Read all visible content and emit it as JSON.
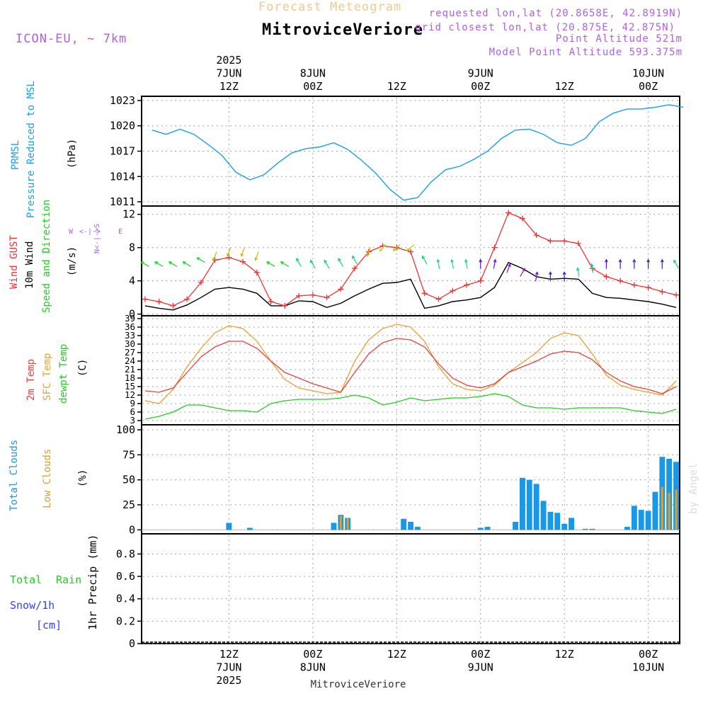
{
  "header": {
    "title": "Forecast Meteogram",
    "location": "MitroviceVeriore",
    "model": "ICON-EU, ~ 7km",
    "requested": "requested lon,lat (20.8658E, 42.8919N)",
    "closest": "grid closest lon,lat (20.875E, 42.875N)",
    "point_altitude": "Point Altitude 521m",
    "model_altitude": "Model Point Altitude 593.375m",
    "watermark": "by Angel",
    "footer_location": "MitroviceVeriore"
  },
  "time_axis": {
    "top_labels": [
      {
        "hour": 12,
        "lines": [
          "2025",
          "7JUN",
          "12Z"
        ]
      },
      {
        "hour": 24,
        "lines": [
          "8JUN",
          "00Z"
        ]
      },
      {
        "hour": 36,
        "lines": [
          "12Z"
        ]
      },
      {
        "hour": 48,
        "lines": [
          "9JUN",
          "00Z"
        ]
      },
      {
        "hour": 60,
        "lines": [
          "12Z"
        ]
      },
      {
        "hour": 72,
        "lines": [
          "10JUN",
          "00Z"
        ]
      }
    ],
    "bottom_labels": [
      {
        "hour": 12,
        "lines": [
          "12Z",
          "7JUN",
          "2025"
        ]
      },
      {
        "hour": 24,
        "lines": [
          "00Z",
          "8JUN"
        ]
      },
      {
        "hour": 36,
        "lines": [
          "12Z"
        ]
      },
      {
        "hour": 48,
        "lines": [
          "00Z",
          "9JUN"
        ]
      },
      {
        "hour": 60,
        "lines": [
          "12Z"
        ]
      },
      {
        "hour": 72,
        "lines": [
          "00Z",
          "10JUN"
        ]
      }
    ]
  },
  "panels": {
    "pressure": {
      "label_a": "PRMSL",
      "label_b": "Pressure Reduced to MSL",
      "unit": "(hPa)"
    },
    "wind": {
      "gust": "Wind GUST",
      "wind": "10m Wind",
      "dir": "Speed and Direction",
      "unit": "(m/s)",
      "compass_ns": "N<-|->S",
      "compass_w": "W",
      "compass_we": "<-|->",
      "compass_e": "E"
    },
    "temp": {
      "t2m": "2m Temp",
      "sfc": "SFC Temp",
      "dew": "dewpt Temp",
      "unit": "(C)"
    },
    "clouds": {
      "total": "Total Clouds",
      "low": "Low Clouds",
      "unit": "(%)"
    },
    "precip": {
      "rain_a": "Total",
      "rain_b": "Rain",
      "snow": "Snow/1h",
      "snow_unit": "[cm]",
      "ylabel": "1hr Precip (mm)"
    }
  },
  "colors": {
    "pressure": "#1aa0e8",
    "gust": "#ee3333",
    "wind": "#000000",
    "t2m": "#e84040",
    "sfc": "#e8a030",
    "dew": "#22cc22",
    "total_cloud": "#1a98e8",
    "low_cloud": "#d8a038",
    "header_title": "#f0c890",
    "header_info": "#b060e0",
    "rain_label": "#22cc22",
    "snow_label": "#3344ee"
  },
  "chart_data": [
    {
      "type": "line",
      "name": "pressure",
      "ylabel": "(hPa)",
      "ylim": [
        1010.5,
        1023.5
      ],
      "yticks": [
        1011,
        1014,
        1017,
        1020,
        1023
      ],
      "x": [
        1,
        3,
        5,
        7,
        9,
        11,
        13,
        15,
        17,
        19,
        21,
        23,
        25,
        27,
        29,
        31,
        33,
        35,
        37,
        39,
        41,
        43,
        45,
        47,
        49,
        51,
        53,
        55,
        57,
        59,
        61,
        63,
        65,
        67,
        69,
        71,
        73,
        75,
        77
      ],
      "values": [
        1019.5,
        1019.0,
        1019.6,
        1019.0,
        1017.8,
        1016.5,
        1014.5,
        1013.6,
        1014.2,
        1015.6,
        1016.8,
        1017.3,
        1017.5,
        1018.0,
        1017.2,
        1015.9,
        1014.4,
        1012.5,
        1011.2,
        1011.5,
        1013.4,
        1014.8,
        1015.2,
        1016.0,
        1017.0,
        1018.5,
        1019.5,
        1019.6,
        1019.0,
        1018.0,
        1017.7,
        1018.5,
        1020.5,
        1021.5,
        1022.0,
        1022.0,
        1022.2,
        1022.5,
        1022.2
      ],
      "grid": true
    },
    {
      "type": "line",
      "name": "wind",
      "ylabel": "(m/s)",
      "ylim": [
        -0.2,
        13
      ],
      "yticks": [
        0,
        4,
        8,
        12
      ],
      "x": [
        0,
        2,
        4,
        6,
        8,
        10,
        12,
        14,
        16,
        18,
        20,
        22,
        24,
        26,
        28,
        30,
        32,
        34,
        36,
        38,
        40,
        42,
        44,
        46,
        48,
        50,
        52,
        54,
        56,
        58,
        60,
        62,
        64,
        66,
        68,
        70,
        72,
        74,
        76
      ],
      "series": [
        {
          "name": "Wind GUST",
          "values": [
            1.8,
            1.5,
            1.0,
            1.8,
            3.8,
            6.5,
            6.8,
            6.3,
            5.0,
            1.5,
            1.0,
            2.2,
            2.3,
            2.0,
            3.0,
            5.5,
            7.5,
            8.2,
            8.0,
            7.5,
            2.5,
            1.8,
            2.8,
            3.5,
            4.0,
            8.0,
            12.2,
            11.5,
            9.5,
            8.8,
            8.8,
            8.5,
            5.5,
            4.5,
            4.0,
            3.5,
            3.2,
            2.7,
            2.3
          ]
        },
        {
          "name": "10m Wind",
          "values": [
            1.0,
            0.7,
            0.5,
            1.1,
            2.0,
            3.0,
            3.2,
            3.0,
            2.5,
            1.0,
            1.0,
            1.6,
            1.5,
            0.8,
            1.3,
            2.2,
            3.0,
            3.7,
            3.8,
            4.2,
            0.7,
            1.0,
            1.5,
            1.7,
            2.0,
            3.2,
            6.2,
            5.5,
            4.5,
            4.2,
            4.3,
            4.2,
            2.5,
            2.0,
            1.9,
            1.7,
            1.5,
            1.2,
            0.8
          ]
        }
      ],
      "barbs": [
        {
          "x": 0,
          "s": 6.0,
          "dir": 300
        },
        {
          "x": 2,
          "s": 6.0,
          "dir": 300
        },
        {
          "x": 4,
          "s": 6.0,
          "dir": 300
        },
        {
          "x": 6,
          "s": 6.0,
          "dir": 300
        },
        {
          "x": 8,
          "s": 6.5,
          "dir": 300
        },
        {
          "x": 10,
          "s": 7.0,
          "dir": 200
        },
        {
          "x": 12,
          "s": 7.5,
          "dir": 200
        },
        {
          "x": 14,
          "s": 7.5,
          "dir": 200
        },
        {
          "x": 16,
          "s": 7.0,
          "dir": 200
        },
        {
          "x": 18,
          "s": 6.0,
          "dir": 300
        },
        {
          "x": 20,
          "s": 6.0,
          "dir": 300
        },
        {
          "x": 22,
          "s": 6.2,
          "dir": 330
        },
        {
          "x": 24,
          "s": 6.0,
          "dir": 330
        },
        {
          "x": 26,
          "s": 6.0,
          "dir": 330
        },
        {
          "x": 28,
          "s": 6.2,
          "dir": 330
        },
        {
          "x": 30,
          "s": 6.5,
          "dir": 330
        },
        {
          "x": 32,
          "s": 7.5,
          "dir": 200
        },
        {
          "x": 34,
          "s": 8.0,
          "dir": 220
        },
        {
          "x": 36,
          "s": 8.0,
          "dir": 230
        },
        {
          "x": 38,
          "s": 8.0,
          "dir": 230
        },
        {
          "x": 40,
          "s": 6.5,
          "dir": 330
        },
        {
          "x": 42,
          "s": 6.0,
          "dir": 350
        },
        {
          "x": 44,
          "s": 6.0,
          "dir": 350
        },
        {
          "x": 46,
          "s": 6.0,
          "dir": 350
        },
        {
          "x": 48,
          "s": 6.0,
          "dir": 0
        },
        {
          "x": 50,
          "s": 6.0,
          "dir": 10
        },
        {
          "x": 52,
          "s": 5.5,
          "dir": 20
        },
        {
          "x": 54,
          "s": 5.0,
          "dir": 30
        },
        {
          "x": 56,
          "s": 4.5,
          "dir": 10
        },
        {
          "x": 58,
          "s": 4.5,
          "dir": 0
        },
        {
          "x": 60,
          "s": 4.5,
          "dir": 0
        },
        {
          "x": 62,
          "s": 5.0,
          "dir": 350
        },
        {
          "x": 64,
          "s": 5.5,
          "dir": 350
        },
        {
          "x": 66,
          "s": 6.0,
          "dir": 0
        },
        {
          "x": 68,
          "s": 6.0,
          "dir": 0
        },
        {
          "x": 70,
          "s": 6.0,
          "dir": 0
        },
        {
          "x": 72,
          "s": 6.0,
          "dir": 0
        },
        {
          "x": 74,
          "s": 6.0,
          "dir": 0
        },
        {
          "x": 76,
          "s": 6.0,
          "dir": 330
        }
      ],
      "grid": true
    },
    {
      "type": "line",
      "name": "temperature",
      "ylabel": "(C)",
      "ylim": [
        1.5,
        40
      ],
      "yticks": [
        3,
        6,
        9,
        12,
        15,
        18,
        21,
        24,
        27,
        30,
        33,
        36,
        39
      ],
      "x": [
        0,
        2,
        4,
        6,
        8,
        10,
        12,
        14,
        16,
        18,
        20,
        22,
        24,
        26,
        28,
        30,
        32,
        34,
        36,
        38,
        40,
        42,
        44,
        46,
        48,
        50,
        52,
        54,
        56,
        58,
        60,
        62,
        64,
        66,
        68,
        70,
        72,
        74,
        76
      ],
      "series": [
        {
          "name": "2m Temp",
          "values": [
            13.5,
            13.0,
            14.5,
            20.0,
            25.5,
            29.0,
            31.0,
            31.0,
            28.5,
            24.0,
            20.0,
            18.0,
            16.0,
            14.5,
            13.0,
            20.0,
            26.5,
            30.5,
            32.0,
            31.5,
            29.0,
            23.0,
            18.0,
            15.5,
            14.5,
            16.0,
            20.0,
            22.0,
            24.0,
            26.5,
            27.5,
            27.0,
            24.5,
            20.0,
            17.0,
            15.0,
            14.0,
            12.5,
            15.0
          ]
        },
        {
          "name": "SFC Temp",
          "values": [
            10.0,
            9.0,
            14.0,
            22.0,
            28.5,
            34.0,
            36.5,
            35.5,
            31.0,
            24.0,
            17.5,
            14.5,
            13.5,
            12.5,
            13.0,
            24.0,
            31.5,
            35.5,
            37.0,
            36.0,
            31.0,
            22.0,
            16.0,
            14.0,
            13.5,
            15.5,
            20.0,
            23.5,
            27.0,
            32.0,
            34.0,
            33.0,
            26.5,
            19.0,
            15.5,
            14.0,
            13.0,
            12.0,
            17.0
          ]
        },
        {
          "name": "dewpt Temp",
          "values": [
            3.5,
            4.5,
            6.0,
            8.5,
            8.5,
            7.5,
            6.5,
            6.5,
            6.0,
            9.0,
            10.0,
            10.5,
            10.5,
            10.5,
            11.0,
            12.0,
            11.0,
            8.5,
            9.5,
            11.0,
            10.0,
            10.5,
            11.0,
            11.0,
            11.5,
            12.5,
            11.5,
            8.5,
            7.5,
            7.5,
            7.0,
            7.5,
            7.5,
            7.5,
            7.5,
            6.5,
            6.0,
            5.5,
            7.0
          ]
        }
      ],
      "grid": true
    },
    {
      "type": "bar",
      "name": "clouds",
      "ylabel": "(%)",
      "ylim": [
        -4,
        105
      ],
      "yticks": [
        0,
        25,
        50,
        75,
        100
      ],
      "x": [
        0,
        1,
        2,
        3,
        4,
        5,
        6,
        7,
        8,
        9,
        10,
        11,
        12,
        13,
        14,
        15,
        16,
        17,
        18,
        19,
        20,
        21,
        22,
        23,
        24,
        25,
        26,
        27,
        28,
        29,
        30,
        31,
        32,
        33,
        34,
        35,
        36,
        37,
        38,
        39,
        40,
        41,
        42,
        43,
        44,
        45,
        46,
        47,
        48,
        49,
        50,
        51,
        52,
        53,
        54,
        55,
        56,
        57,
        58,
        59,
        60,
        61,
        62,
        63,
        64,
        65,
        66,
        67,
        68,
        69,
        70,
        71,
        72,
        73,
        74,
        75,
        76
      ],
      "series": [
        {
          "name": "Total Clouds",
          "values": [
            0,
            0,
            0,
            0,
            0,
            0,
            0,
            0,
            0,
            0,
            0,
            0,
            7,
            0,
            0,
            2,
            0,
            0,
            0,
            0,
            0,
            0,
            0,
            0,
            0,
            0,
            0,
            7,
            15,
            12,
            0,
            0,
            0,
            0,
            0,
            0,
            0,
            11,
            8,
            3,
            0,
            0,
            0,
            0,
            0,
            0,
            0,
            0,
            2,
            3,
            0,
            0,
            0,
            8,
            52,
            50,
            46,
            29,
            18,
            17,
            6,
            12,
            0,
            1,
            1,
            0,
            0,
            0,
            0,
            3,
            24,
            20,
            19,
            38,
            73,
            71,
            68
          ]
        },
        {
          "name": "Low Clouds",
          "values": [
            0,
            0,
            0,
            0,
            0,
            0,
            0,
            0,
            0,
            0,
            0,
            0,
            0,
            0,
            0,
            0,
            0,
            0,
            0,
            0,
            0,
            0,
            0,
            0,
            0,
            0,
            0,
            0,
            14,
            12,
            0,
            0,
            0,
            0,
            0,
            0,
            0,
            0,
            0,
            0,
            0,
            0,
            0,
            0,
            0,
            0,
            0,
            0,
            0,
            0,
            0,
            0,
            0,
            0,
            0,
            0,
            0,
            0,
            0,
            0,
            0,
            0,
            0,
            0,
            0,
            0,
            0,
            0,
            0,
            0,
            0,
            0,
            0,
            0,
            43,
            37,
            40
          ]
        }
      ],
      "grid": true
    },
    {
      "type": "line",
      "name": "precipitation",
      "ylabel": "1hr Precip (mm)",
      "ylim": [
        0,
        0.98
      ],
      "yticks": [
        0,
        0.2,
        0.4,
        0.6,
        0.8
      ],
      "ytick_labels": [
        "0",
        "0.2",
        "0.4",
        "0.6",
        "0.8"
      ],
      "series": [
        {
          "name": "Total Rain",
          "values": []
        },
        {
          "name": "Snow/1h",
          "values": []
        }
      ],
      "grid": true
    }
  ]
}
